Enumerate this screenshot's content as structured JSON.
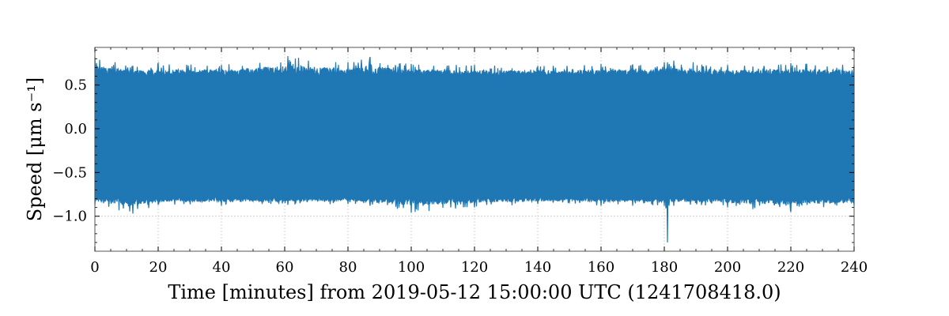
{
  "chart_data": {
    "type": "line",
    "title": "",
    "xlabel": "Time [minutes] from 2019-05-12 15:00:00 UTC (1241708418.0)",
    "ylabel": "Speed [μm s⁻¹]",
    "xlim": [
      0,
      240
    ],
    "ylim": [
      -1.4,
      0.93
    ],
    "xticks": [
      0,
      20,
      40,
      60,
      80,
      100,
      120,
      140,
      160,
      180,
      200,
      220,
      240
    ],
    "xtick_labels": [
      "0",
      "20",
      "40",
      "60",
      "80",
      "100",
      "120",
      "140",
      "160",
      "180",
      "200",
      "220",
      "240"
    ],
    "yticks": [
      0.5,
      0.0,
      -0.5,
      -1.0
    ],
    "ytick_labels": [
      "0.5",
      "0.0",
      "−0.5",
      "−1.0"
    ],
    "grid": true,
    "color": "#1f77b4",
    "series": [
      {
        "name": "",
        "x": [
          0,
          12,
          20,
          40,
          61,
          80,
          87,
          100,
          120,
          140,
          160,
          170,
          180,
          181,
          181.5,
          183,
          200,
          220,
          240
        ],
        "max": [
          0.82,
          0.72,
          0.75,
          0.73,
          0.83,
          0.76,
          0.82,
          0.74,
          0.73,
          0.72,
          0.74,
          0.73,
          0.76,
          0.76,
          0.74,
          0.78,
          0.73,
          0.75,
          0.73
        ],
        "min": [
          -0.87,
          -0.97,
          -0.87,
          -0.88,
          -0.87,
          -0.86,
          -0.88,
          -0.96,
          -0.9,
          -0.86,
          -0.88,
          -0.88,
          -0.88,
          -1.3,
          -0.88,
          -0.88,
          -0.9,
          -0.95,
          -0.88
        ]
      }
    ]
  }
}
